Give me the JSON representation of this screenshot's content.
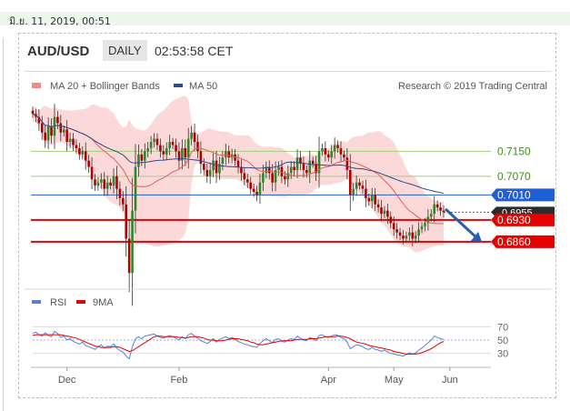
{
  "topbar": {
    "text": "มิ.ย. 11, 2019, 00:51"
  },
  "header": {
    "pair": "AUD/USD",
    "timeframe": "DAILY",
    "time": "02:53:58 CET"
  },
  "legend": {
    "ma20": "MA 20 + Bollinger Bands",
    "ma50": "MA 50",
    "credit": "Research © 2019 Trading Central"
  },
  "colors": {
    "bollinger": "#f9b9b9",
    "ma20": "#e06060",
    "ma50": "#2a4a8a",
    "resistance": "#9ed27a",
    "current": "#1f5fd6",
    "support": "#e60000",
    "up": "#2a8a2a",
    "down": "#b30000",
    "rsi": "#5a7fd6",
    "rsi_ma": "#e60000"
  },
  "chart_data": [
    {
      "type": "candlestick",
      "x_labels": [
        "Dec",
        "Feb",
        "Apr",
        "May",
        "Jun"
      ],
      "y_levels": [
        {
          "value": 0.715,
          "label": "0.7150",
          "kind": "resistance"
        },
        {
          "value": 0.707,
          "label": "0.7070",
          "kind": "resistance"
        },
        {
          "value": 0.701,
          "label": "0.7010",
          "kind": "current"
        },
        {
          "value": 0.6955,
          "label": "0.6955",
          "kind": "last"
        },
        {
          "value": 0.693,
          "label": "0.6930",
          "kind": "support"
        },
        {
          "value": 0.686,
          "label": "0.6860",
          "kind": "support"
        }
      ],
      "ylim": [
        0.672,
        0.732
      ],
      "close": [
        0.727,
        0.726,
        0.724,
        0.721,
        0.7185,
        0.723,
        0.72,
        0.726,
        0.724,
        0.721,
        0.722,
        0.718,
        0.719,
        0.717,
        0.716,
        0.714,
        0.715,
        0.712,
        0.71,
        0.706,
        0.704,
        0.705,
        0.706,
        0.703,
        0.705,
        0.704,
        0.707,
        0.703,
        0.7,
        0.698,
        0.687,
        0.676,
        0.696,
        0.71,
        0.714,
        0.712,
        0.715,
        0.716,
        0.718,
        0.719,
        0.717,
        0.715,
        0.714,
        0.716,
        0.718,
        0.717,
        0.715,
        0.712,
        0.716,
        0.713,
        0.719,
        0.721,
        0.718,
        0.715,
        0.711,
        0.709,
        0.707,
        0.709,
        0.712,
        0.708,
        0.711,
        0.713,
        0.715,
        0.713,
        0.714,
        0.712,
        0.71,
        0.708,
        0.706,
        0.705,
        0.703,
        0.702,
        0.701,
        0.705,
        0.708,
        0.71,
        0.708,
        0.705,
        0.709,
        0.71,
        0.707,
        0.706,
        0.708,
        0.71,
        0.709,
        0.713,
        0.711,
        0.709,
        0.708,
        0.712,
        0.711,
        0.708,
        0.715,
        0.716,
        0.714,
        0.713,
        0.715,
        0.717,
        0.716,
        0.714,
        0.713,
        0.709,
        0.701,
        0.703,
        0.705,
        0.704,
        0.703,
        0.7,
        0.699,
        0.701,
        0.698,
        0.697,
        0.695,
        0.696,
        0.694,
        0.692,
        0.69,
        0.689,
        0.688,
        0.687,
        0.688,
        0.689,
        0.687,
        0.688,
        0.69,
        0.691,
        0.692,
        0.694,
        0.695,
        0.698,
        0.697,
        0.696,
        0.6955
      ],
      "rsi_axis": [
        70,
        50,
        30
      ],
      "rsi_legend": [
        "RSI",
        "9MA"
      ],
      "rsi": [
        60,
        62,
        58,
        56,
        61,
        57,
        55,
        63,
        60,
        54,
        56,
        50,
        52,
        48,
        46,
        44,
        47,
        42,
        40,
        38,
        36,
        40,
        43,
        38,
        41,
        40,
        44,
        38,
        34,
        32,
        26,
        22,
        40,
        52,
        55,
        52,
        56,
        57,
        58,
        59,
        56,
        54,
        53,
        55,
        57,
        55,
        53,
        50,
        55,
        52,
        58,
        60,
        56,
        53,
        49,
        47,
        45,
        48,
        52,
        47,
        51,
        53,
        55,
        52,
        54,
        51,
        48,
        46,
        44,
        43,
        41,
        40,
        39,
        45,
        49,
        52,
        49,
        46,
        51,
        52,
        48,
        47,
        50,
        52,
        51,
        56,
        53,
        50,
        49,
        54,
        52,
        49,
        57,
        58,
        55,
        54,
        56,
        58,
        57,
        54,
        52,
        47,
        37,
        40,
        43,
        42,
        40,
        37,
        36,
        39,
        36,
        35,
        33,
        35,
        32,
        30,
        29,
        28,
        27,
        26,
        28,
        31,
        29,
        31,
        35,
        38,
        42,
        46,
        50,
        56,
        54,
        52,
        51
      ],
      "rsi_ma": [
        57,
        58,
        58,
        58,
        58,
        58,
        58,
        58,
        58,
        58,
        57,
        56,
        55,
        54,
        53,
        51,
        49,
        47,
        45,
        43,
        41,
        40,
        39,
        39,
        39,
        39,
        40,
        40,
        39,
        37,
        35,
        33,
        34,
        37,
        40,
        43,
        46,
        49,
        52,
        55,
        56,
        56,
        55,
        55,
        55,
        55,
        55,
        54,
        54,
        53,
        54,
        55,
        55,
        55,
        54,
        53,
        51,
        50,
        50,
        49,
        49,
        49,
        50,
        51,
        52,
        52,
        52,
        51,
        50,
        49,
        47,
        46,
        44,
        43,
        43,
        44,
        45,
        46,
        47,
        48,
        49,
        49,
        49,
        49,
        50,
        51,
        51,
        51,
        51,
        52,
        52,
        52,
        53,
        54,
        55,
        55,
        55,
        55,
        56,
        56,
        55,
        54,
        52,
        49,
        47,
        46,
        45,
        44,
        42,
        41,
        40,
        39,
        38,
        37,
        36,
        35,
        33,
        32,
        31,
        30,
        29,
        29,
        29,
        29,
        30,
        31,
        33,
        35,
        37,
        40,
        43,
        46,
        48
      ]
    }
  ]
}
